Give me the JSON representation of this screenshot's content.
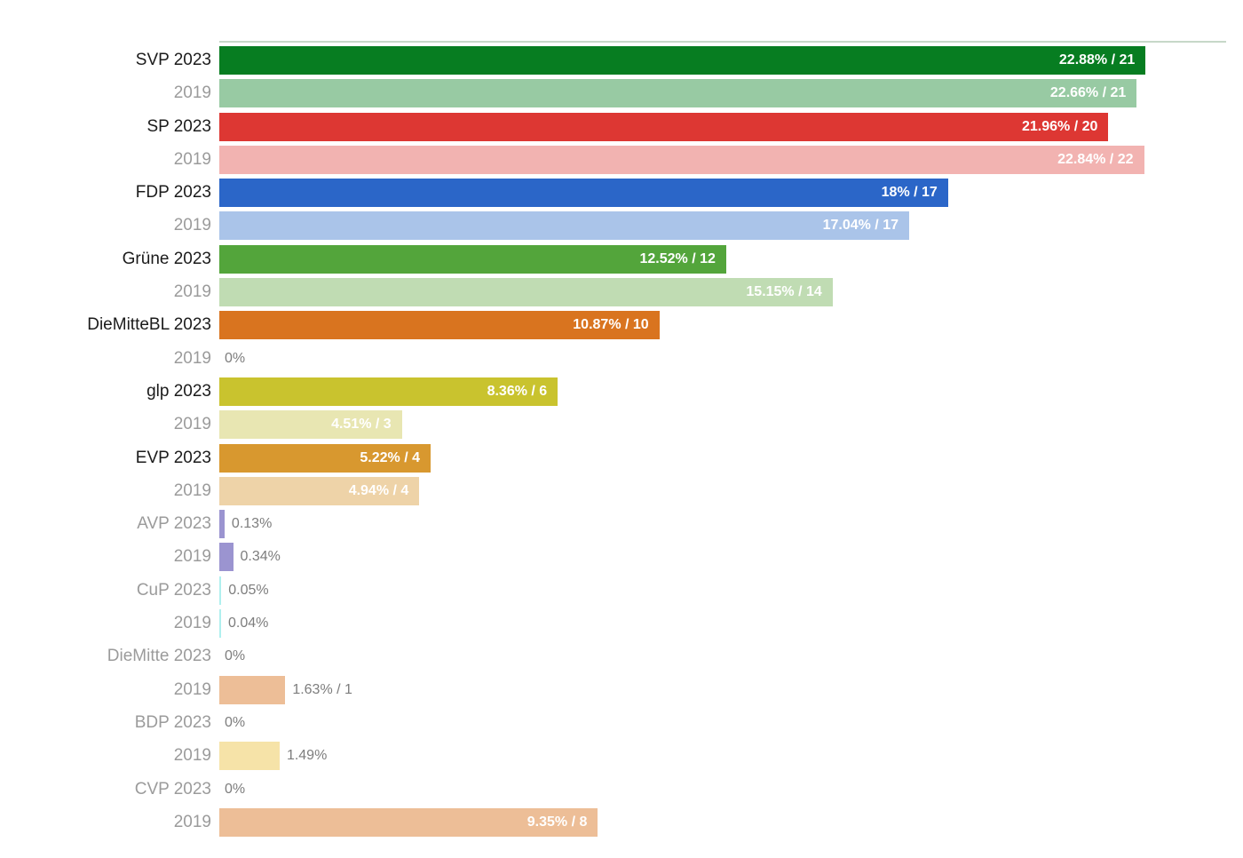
{
  "page": {
    "background": "#ffffff"
  },
  "chart_data": {
    "type": "bar",
    "orientation": "horizontal",
    "title": "",
    "subtitle": "",
    "xlabel": "",
    "ylabel": "",
    "grid": false,
    "legend": "none",
    "xlim_percent": [
      0,
      25
    ],
    "value_format": "percent and seats (pct% / seats)",
    "top_rule_color": "#c6d8c8",
    "label_color_emphasis": "#1b1b1b",
    "label_color_muted": "#9b9b9b",
    "outside_value_color": "#7d7d7d",
    "inside_value_color": "#ffffff",
    "rows": [
      {
        "label": "SVP 2023",
        "party": "SVP",
        "year": "2023",
        "percent": 22.88,
        "seats": 21,
        "value_text": "22.88% / 21",
        "color": "#077d21",
        "emphasis": true,
        "value_placement": "inside"
      },
      {
        "label": "2019",
        "party": "SVP",
        "year": "2019",
        "percent": 22.66,
        "seats": 21,
        "value_text": "22.66% / 21",
        "color": "#98caa3",
        "emphasis": false,
        "value_placement": "inside"
      },
      {
        "label": "SP 2023",
        "party": "SP",
        "year": "2023",
        "percent": 21.96,
        "seats": 20,
        "value_text": "21.96% / 20",
        "color": "#dd3733",
        "emphasis": true,
        "value_placement": "inside"
      },
      {
        "label": "2019",
        "party": "SP",
        "year": "2019",
        "percent": 22.84,
        "seats": 22,
        "value_text": "22.84% / 22",
        "color": "#f2b3b1",
        "emphasis": false,
        "value_placement": "inside"
      },
      {
        "label": "FDP 2023",
        "party": "FDP",
        "year": "2023",
        "percent": 18,
        "seats": 17,
        "value_text": "18% / 17",
        "color": "#2b66c8",
        "emphasis": true,
        "value_placement": "inside"
      },
      {
        "label": "2019",
        "party": "FDP",
        "year": "2019",
        "percent": 17.04,
        "seats": 17,
        "value_text": "17.04% / 17",
        "color": "#aac4e9",
        "emphasis": false,
        "value_placement": "inside"
      },
      {
        "label": "Grüne 2023",
        "party": "Grüne",
        "year": "2023",
        "percent": 12.52,
        "seats": 12,
        "value_text": "12.52% / 12",
        "color": "#53a53b",
        "emphasis": true,
        "value_placement": "inside"
      },
      {
        "label": "2019",
        "party": "Grüne",
        "year": "2019",
        "percent": 15.15,
        "seats": 14,
        "value_text": "15.15% / 14",
        "color": "#c0dcb3",
        "emphasis": false,
        "value_placement": "inside"
      },
      {
        "label": "DieMitteBL 2023",
        "party": "DieMitteBL",
        "year": "2023",
        "percent": 10.87,
        "seats": 10,
        "value_text": "10.87% / 10",
        "color": "#d9741f",
        "emphasis": true,
        "value_placement": "inside"
      },
      {
        "label": "2019",
        "party": "DieMitteBL",
        "year": "2019",
        "percent": 0,
        "seats": null,
        "value_text": "0%",
        "color": null,
        "emphasis": false,
        "value_placement": "outside"
      },
      {
        "label": "glp 2023",
        "party": "glp",
        "year": "2023",
        "percent": 8.36,
        "seats": 6,
        "value_text": "8.36% / 6",
        "color": "#c9c32e",
        "emphasis": true,
        "value_placement": "inside"
      },
      {
        "label": "2019",
        "party": "glp",
        "year": "2019",
        "percent": 4.51,
        "seats": 3,
        "value_text": "4.51% / 3",
        "color": "#e8e6b2",
        "emphasis": false,
        "value_placement": "inside"
      },
      {
        "label": "EVP 2023",
        "party": "EVP",
        "year": "2023",
        "percent": 5.22,
        "seats": 4,
        "value_text": "5.22% / 4",
        "color": "#d8982f",
        "emphasis": true,
        "value_placement": "inside"
      },
      {
        "label": "2019",
        "party": "EVP",
        "year": "2019",
        "percent": 4.94,
        "seats": 4,
        "value_text": "4.94% / 4",
        "color": "#eed3a8",
        "emphasis": false,
        "value_placement": "inside"
      },
      {
        "label": "AVP 2023",
        "party": "AVP",
        "year": "2023",
        "percent": 0.13,
        "seats": null,
        "value_text": "0.13%",
        "color": "#9b94d0",
        "emphasis": false,
        "value_placement": "outside"
      },
      {
        "label": "2019",
        "party": "AVP",
        "year": "2019",
        "percent": 0.34,
        "seats": null,
        "value_text": "0.34%",
        "color": "#9b94d0",
        "emphasis": false,
        "value_placement": "outside"
      },
      {
        "label": "CuP 2023",
        "party": "CuP",
        "year": "2023",
        "percent": 0.05,
        "seats": null,
        "value_text": "0.05%",
        "color": "#b0f0ef",
        "emphasis": false,
        "value_placement": "outside"
      },
      {
        "label": "2019",
        "party": "CuP",
        "year": "2019",
        "percent": 0.04,
        "seats": null,
        "value_text": "0.04%",
        "color": "#b0f0ef",
        "emphasis": false,
        "value_placement": "outside"
      },
      {
        "label": "DieMitte 2023",
        "party": "DieMitte",
        "year": "2023",
        "percent": 0,
        "seats": null,
        "value_text": "0%",
        "color": null,
        "emphasis": false,
        "value_placement": "outside"
      },
      {
        "label": "2019",
        "party": "DieMitte",
        "year": "2019",
        "percent": 1.63,
        "seats": 1,
        "value_text": "1.63% / 1",
        "color": "#edbe97",
        "emphasis": false,
        "value_placement": "outside"
      },
      {
        "label": "BDP 2023",
        "party": "BDP",
        "year": "2023",
        "percent": 0,
        "seats": null,
        "value_text": "0%",
        "color": null,
        "emphasis": false,
        "value_placement": "outside"
      },
      {
        "label": "2019",
        "party": "BDP",
        "year": "2019",
        "percent": 1.49,
        "seats": null,
        "value_text": "1.49%",
        "color": "#f6e3a8",
        "emphasis": false,
        "value_placement": "outside"
      },
      {
        "label": "CVP 2023",
        "party": "CVP",
        "year": "2023",
        "percent": 0,
        "seats": null,
        "value_text": "0%",
        "color": null,
        "emphasis": false,
        "value_placement": "outside"
      },
      {
        "label": "2019",
        "party": "CVP",
        "year": "2019",
        "percent": 9.35,
        "seats": 8,
        "value_text": "9.35% / 8",
        "color": "#edbe97",
        "emphasis": false,
        "value_placement": "inside"
      }
    ]
  }
}
